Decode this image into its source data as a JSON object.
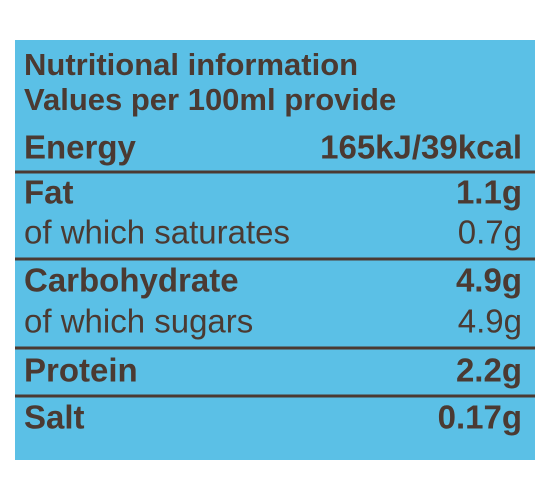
{
  "header": {
    "title": "Nutritional information",
    "subtitle": "Values per 100ml provide"
  },
  "table": {
    "rows": [
      [
        "Energy",
        "165kJ/39kcal"
      ],
      [
        "Fat",
        "1.1g"
      ],
      [
        "of which saturates",
        "0.7g"
      ],
      [
        "Carbohydrate",
        "4.9g"
      ],
      [
        "of which sugars",
        "4.9g"
      ],
      [
        "Protein",
        "2.2g"
      ],
      [
        "Salt",
        "0.17g"
      ]
    ]
  }
}
